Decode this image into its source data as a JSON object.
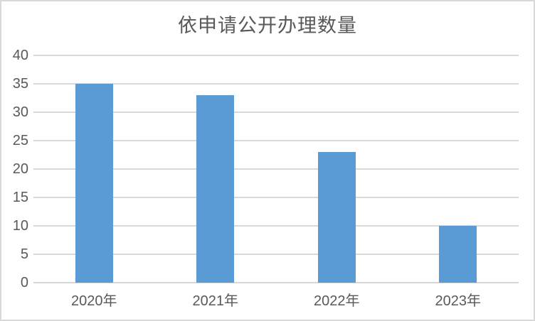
{
  "chart_data": {
    "type": "bar",
    "title": "依申请公开办理数量",
    "categories": [
      "2020年",
      "2021年",
      "2022年",
      "2023年"
    ],
    "values": [
      35,
      33,
      23,
      10
    ],
    "xlabel": "",
    "ylabel": "",
    "ylim": [
      0,
      40
    ],
    "y_ticks": [
      0,
      5,
      10,
      15,
      20,
      25,
      30,
      35,
      40
    ],
    "grid": "horizontal",
    "legend": "none",
    "bar_color": "#5b9bd5",
    "gridline_color": "#d9d9d9",
    "axis_line_color": "#d6d6d6",
    "tick_label_color": "#595959",
    "title_color": "#595959",
    "background_color": "#ffffff",
    "border_color": "#d9d9d9"
  }
}
